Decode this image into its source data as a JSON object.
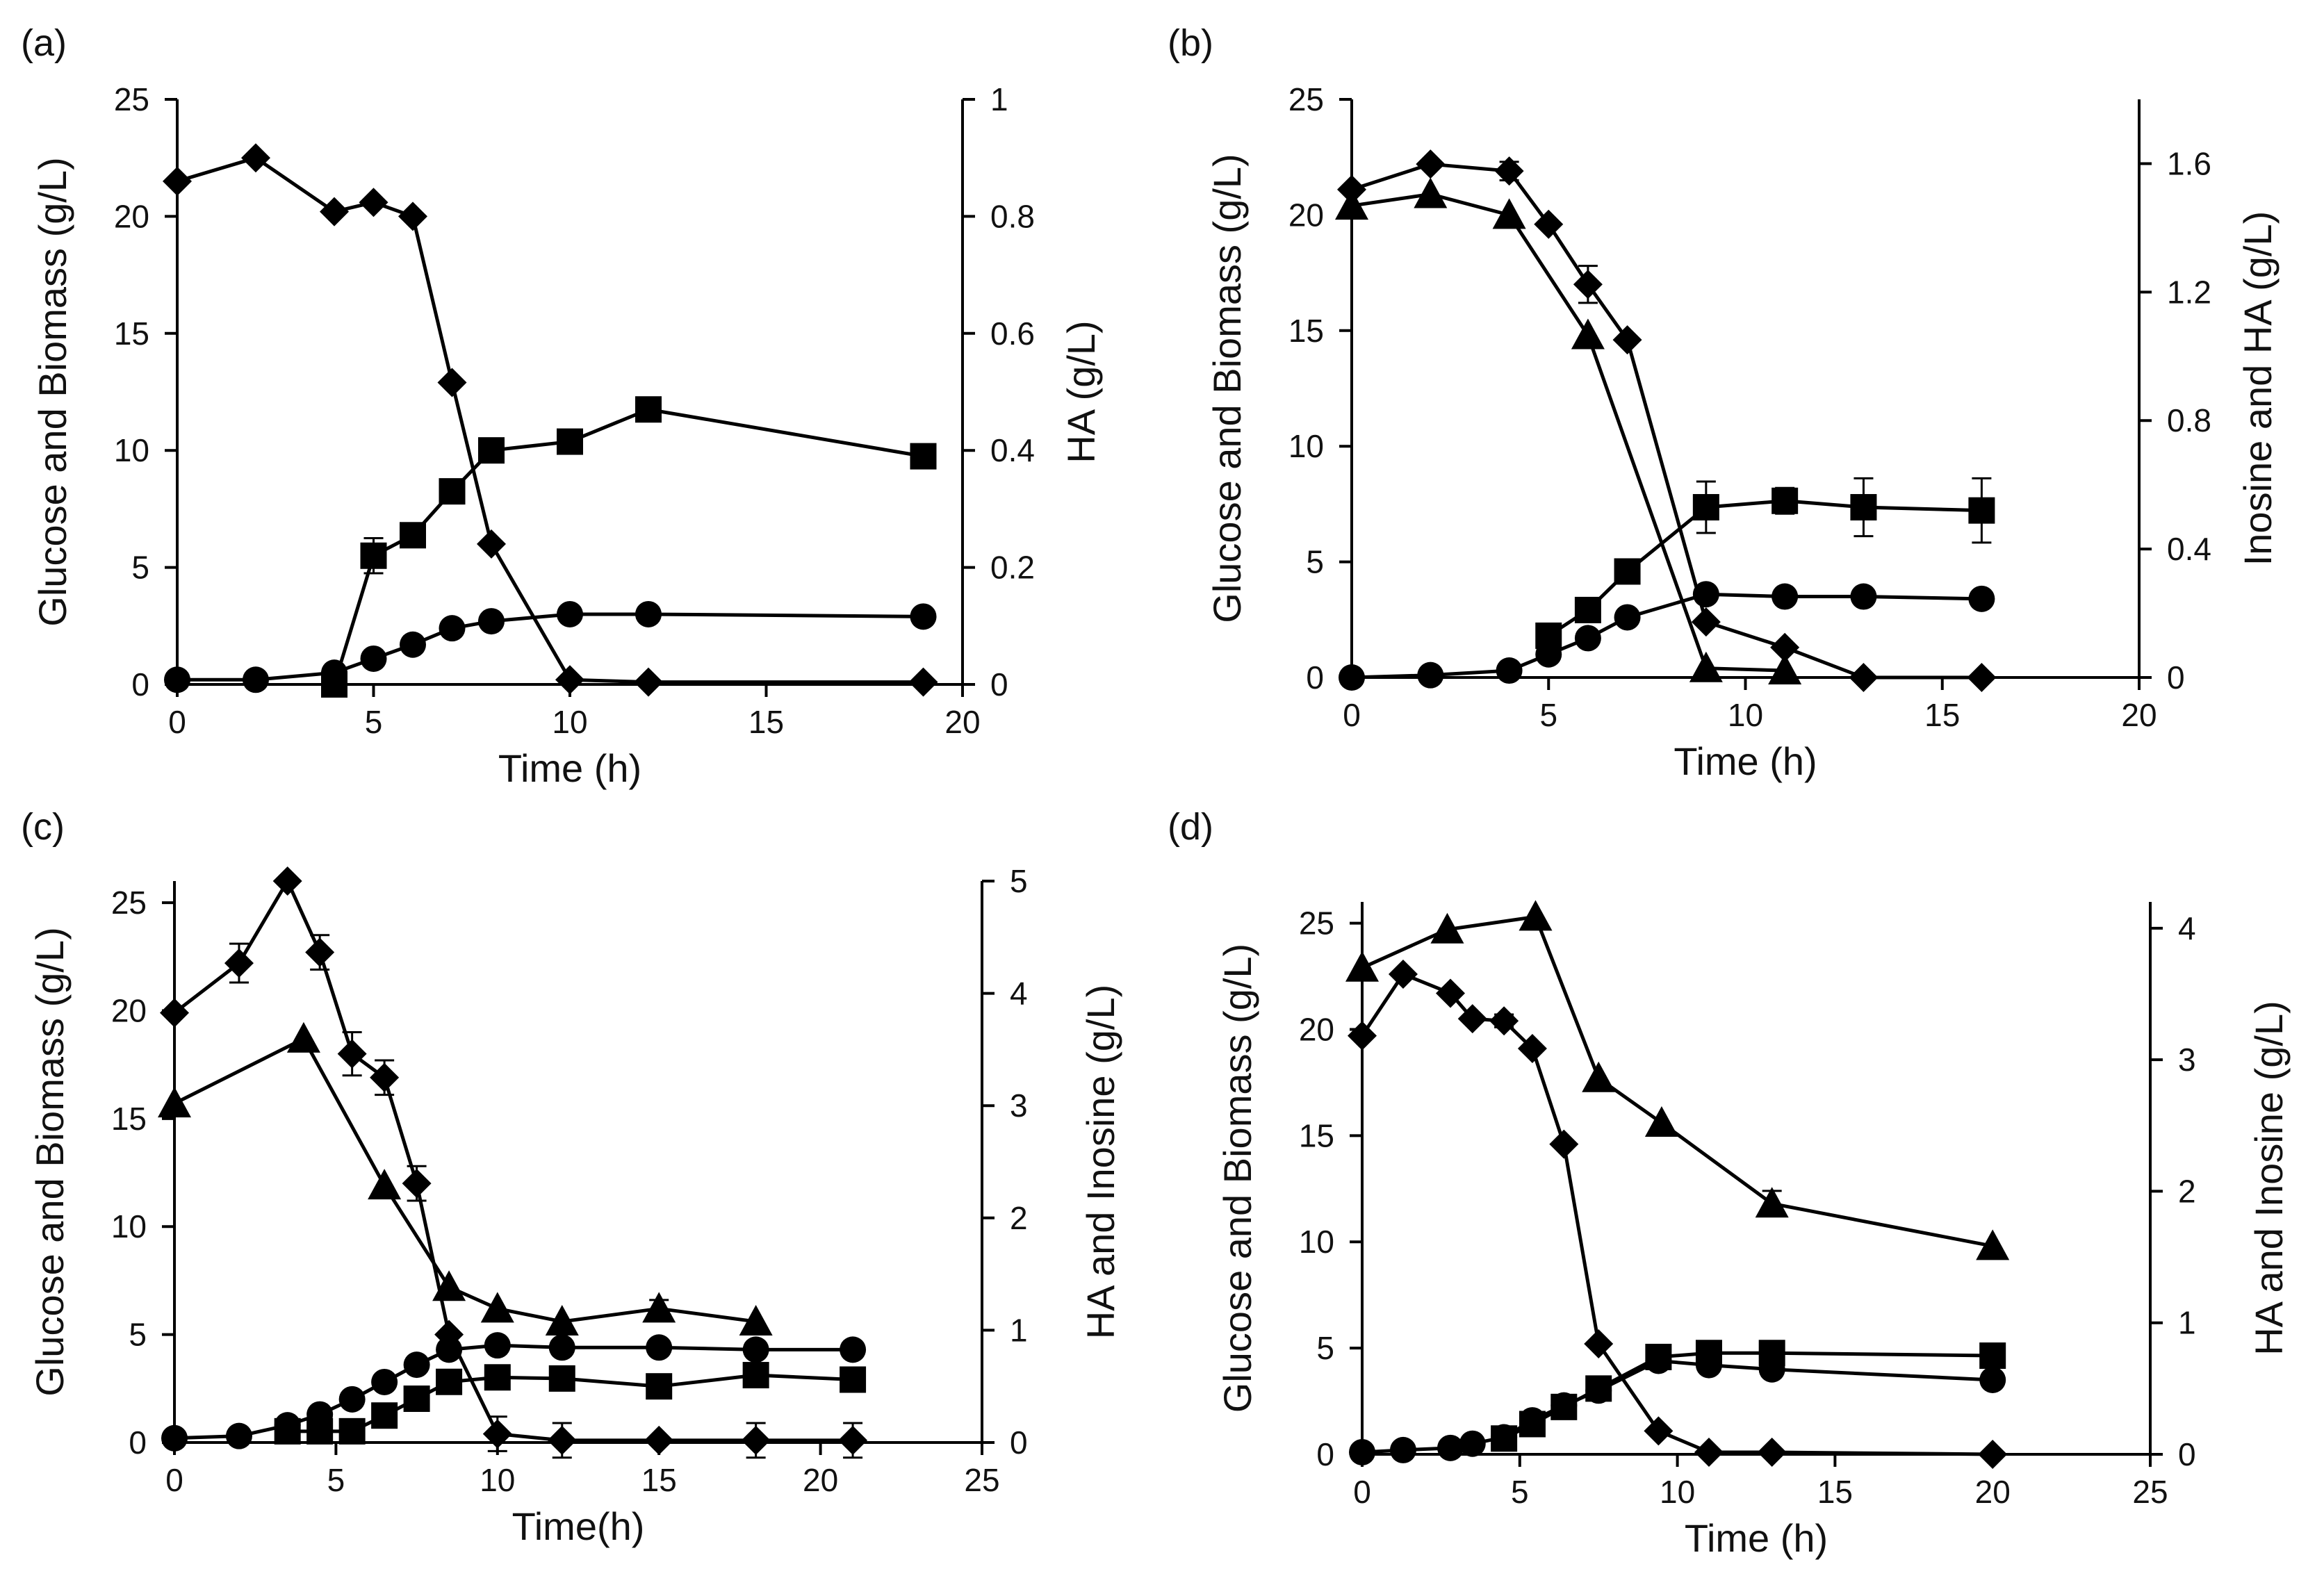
{
  "colors": {
    "line": "#000000",
    "background": "#ffffff",
    "text": "#111111"
  },
  "chart_data": [
    {
      "panel": "(a)",
      "type": "line",
      "xlabel": "Time (h)",
      "ylabel": "Glucose and Biomass  (g/L)",
      "y2label": "HA (g/L)",
      "xlim": [
        0,
        20
      ],
      "xticks": [
        0,
        5,
        10,
        15,
        20
      ],
      "ylim": [
        0,
        25
      ],
      "yticks": [
        0,
        5,
        10,
        15,
        20,
        25
      ],
      "y2lim": [
        0,
        1
      ],
      "y2ticks": [
        0,
        0.2,
        0.4,
        0.6,
        0.8,
        1
      ],
      "y2ticklabels": [
        "0",
        "0.2",
        "0.4",
        "0.6",
        "0.8",
        "1"
      ],
      "series": [
        {
          "name": "Glucose",
          "marker": "diamond",
          "axis": "left",
          "x": [
            0,
            2,
            4,
            5,
            6,
            7,
            8,
            10,
            12,
            19
          ],
          "y": [
            21.5,
            22.5,
            20.2,
            20.6,
            20.0,
            12.9,
            6.0,
            0.2,
            0.1,
            0.1
          ]
        },
        {
          "name": "Biomass",
          "marker": "circle",
          "axis": "left",
          "x": [
            0,
            2,
            4,
            5,
            6,
            7,
            8,
            10,
            12,
            19
          ],
          "y": [
            0.2,
            0.2,
            0.5,
            1.1,
            1.7,
            2.4,
            2.7,
            3.0,
            3.0,
            2.9
          ]
        },
        {
          "name": "HA",
          "marker": "square",
          "axis": "right",
          "x": [
            4,
            5,
            6,
            7,
            8,
            10,
            12,
            19
          ],
          "y": [
            0.0,
            0.22,
            0.255,
            0.33,
            0.4,
            0.415,
            0.47,
            0.39
          ],
          "err": [
            0,
            0.03,
            0,
            0,
            0,
            0,
            0,
            0
          ]
        }
      ]
    },
    {
      "panel": "(b)",
      "type": "line",
      "xlabel": "Time (h)",
      "ylabel": "Glucose and Biomass (g/L)",
      "y2label": "Inosine and HA (g/L)",
      "xlim": [
        0,
        20
      ],
      "xticks": [
        0,
        5,
        10,
        15,
        20
      ],
      "ylim": [
        0,
        25
      ],
      "yticks": [
        0,
        5,
        10,
        15,
        20,
        25
      ],
      "y2lim": [
        0,
        1.8
      ],
      "y2ticks": [
        0,
        0.4,
        0.8,
        1.2,
        1.6
      ],
      "y2ticklabels": [
        "0",
        "0.4",
        "0.8",
        "1.2",
        "1.6"
      ],
      "series": [
        {
          "name": "Glucose",
          "marker": "diamond",
          "axis": "left",
          "x": [
            0,
            2,
            4,
            5,
            6,
            7,
            9,
            11,
            13,
            16
          ],
          "y": [
            21.1,
            22.2,
            21.9,
            19.6,
            17.0,
            14.6,
            2.4,
            1.3,
            0.0,
            0.0
          ],
          "err": [
            0,
            0,
            0.4,
            0,
            0.8,
            0,
            0,
            0,
            0,
            0
          ]
        },
        {
          "name": "Inosine",
          "marker": "triangle",
          "axis": "left",
          "x": [
            0,
            2,
            4,
            6,
            9,
            11
          ],
          "y": [
            20.4,
            20.9,
            20.0,
            14.8,
            0.4,
            0.3
          ]
        },
        {
          "name": "Biomass",
          "marker": "circle",
          "axis": "left",
          "x": [
            0,
            2,
            4,
            5,
            6,
            7,
            9,
            11,
            13,
            16
          ],
          "y": [
            0.0,
            0.1,
            0.3,
            1.0,
            1.7,
            2.6,
            3.6,
            3.5,
            3.5,
            3.4
          ]
        },
        {
          "name": "HA",
          "marker": "square",
          "axis": "right",
          "x": [
            5,
            6,
            7,
            9,
            11,
            13,
            16
          ],
          "y": [
            0.13,
            0.21,
            0.33,
            0.53,
            0.55,
            0.53,
            0.52
          ],
          "err": [
            0,
            0,
            0,
            0.08,
            0.04,
            0.09,
            0.1
          ]
        }
      ]
    },
    {
      "panel": "(c)",
      "type": "line",
      "xlabel": "Time(h)",
      "ylabel": "Glucose and Biomass (g/L)",
      "y2label": "HA and Inosine (g/L)",
      "xlim": [
        0,
        25
      ],
      "xticks": [
        0,
        5,
        10,
        15,
        20,
        25
      ],
      "ylim": [
        0,
        26
      ],
      "yticks": [
        0,
        5,
        10,
        15,
        20,
        25
      ],
      "y2lim": [
        0,
        5
      ],
      "y2ticks": [
        0,
        1,
        2,
        3,
        4,
        5
      ],
      "y2ticklabels": [
        "0",
        "1",
        "2",
        "3",
        "4",
        "5"
      ],
      "series": [
        {
          "name": "Glucose",
          "marker": "diamond",
          "axis": "left",
          "x": [
            0,
            2,
            3.5,
            4.5,
            5.5,
            6.5,
            7.5,
            8.5,
            10,
            12,
            15,
            18,
            21
          ],
          "y": [
            19.9,
            22.2,
            26.0,
            22.7,
            18.0,
            16.9,
            12.0,
            5.0,
            0.4,
            0.1,
            0.1,
            0.1,
            0.1
          ],
          "err": [
            0,
            0.9,
            0,
            0.8,
            1.0,
            0.8,
            0.8,
            0,
            0.8,
            0.8,
            0,
            0.8,
            0.8
          ]
        },
        {
          "name": "Inosine",
          "marker": "triangle",
          "axis": "left",
          "x": [
            0,
            4,
            6.5,
            8.5,
            10,
            12,
            15,
            18
          ],
          "y": [
            15.7,
            18.7,
            11.9,
            7.2,
            6.2,
            5.6,
            6.2,
            5.6
          ],
          "err": [
            0,
            0,
            0,
            0,
            0,
            0,
            0.4,
            0
          ]
        },
        {
          "name": "Biomass",
          "marker": "circle",
          "axis": "left",
          "x": [
            0,
            2,
            3.5,
            4.5,
            5.5,
            6.5,
            7.5,
            8.5,
            10,
            12,
            15,
            18,
            21
          ],
          "y": [
            0.2,
            0.3,
            0.8,
            1.3,
            2.0,
            2.8,
            3.6,
            4.3,
            4.5,
            4.4,
            4.4,
            4.3,
            4.3
          ]
        },
        {
          "name": "HA",
          "marker": "square",
          "axis": "right",
          "x": [
            3.5,
            4.5,
            5.5,
            6.5,
            7.5,
            8.5,
            10,
            12,
            15,
            18,
            21
          ],
          "y": [
            0.1,
            0.1,
            0.1,
            0.24,
            0.39,
            0.54,
            0.58,
            0.57,
            0.5,
            0.6,
            0.56
          ]
        }
      ]
    },
    {
      "panel": "(d)",
      "type": "line",
      "xlabel": "Time (h)",
      "ylabel": "Glucose and Biomass (g/L)",
      "y2label": "HA and Inosine (g/L)",
      "xlim": [
        0,
        25
      ],
      "xticks": [
        0,
        5,
        10,
        15,
        20,
        25
      ],
      "ylim": [
        0,
        26
      ],
      "yticks": [
        0,
        5,
        10,
        15,
        20,
        25
      ],
      "y2lim": [
        0,
        4.2
      ],
      "y2ticks": [
        0,
        1,
        2,
        3,
        4
      ],
      "y2ticklabels": [
        "0",
        "1",
        "2",
        "3",
        "4"
      ],
      "series": [
        {
          "name": "Glucose",
          "marker": "diamond",
          "axis": "left",
          "x": [
            0,
            1.3,
            2.8,
            3.5,
            4.5,
            5.4,
            6.4,
            7.5,
            9.4,
            11,
            13,
            20
          ],
          "y": [
            19.7,
            22.6,
            21.7,
            20.5,
            20.4,
            19.1,
            14.6,
            5.2,
            1.1,
            0.1,
            0.1,
            0.0
          ],
          "err": [
            0,
            0,
            0,
            0,
            0.3,
            0,
            0,
            0,
            0,
            0,
            0,
            0
          ]
        },
        {
          "name": "Inosine",
          "marker": "triangle",
          "axis": "left",
          "x": [
            0,
            2.7,
            5.5,
            7.5,
            9.5,
            13,
            20
          ],
          "y": [
            22.9,
            24.7,
            25.3,
            17.7,
            15.6,
            11.8,
            9.8
          ],
          "err": [
            0,
            0,
            0,
            0,
            0,
            0.6,
            0
          ]
        },
        {
          "name": "Biomass",
          "marker": "circle",
          "axis": "left",
          "x": [
            0,
            1.3,
            2.8,
            3.5,
            4.5,
            5.4,
            6.4,
            7.5,
            9.4,
            11,
            13,
            20
          ],
          "y": [
            0.1,
            0.2,
            0.3,
            0.5,
            0.8,
            1.6,
            2.3,
            3.0,
            4.4,
            4.2,
            4.0,
            3.5
          ]
        },
        {
          "name": "HA",
          "marker": "square",
          "axis": "right",
          "x": [
            4.5,
            5.4,
            6.4,
            7.5,
            9.4,
            11,
            13,
            20
          ],
          "y": [
            0.12,
            0.23,
            0.36,
            0.5,
            0.74,
            0.77,
            0.77,
            0.75
          ]
        }
      ]
    }
  ]
}
